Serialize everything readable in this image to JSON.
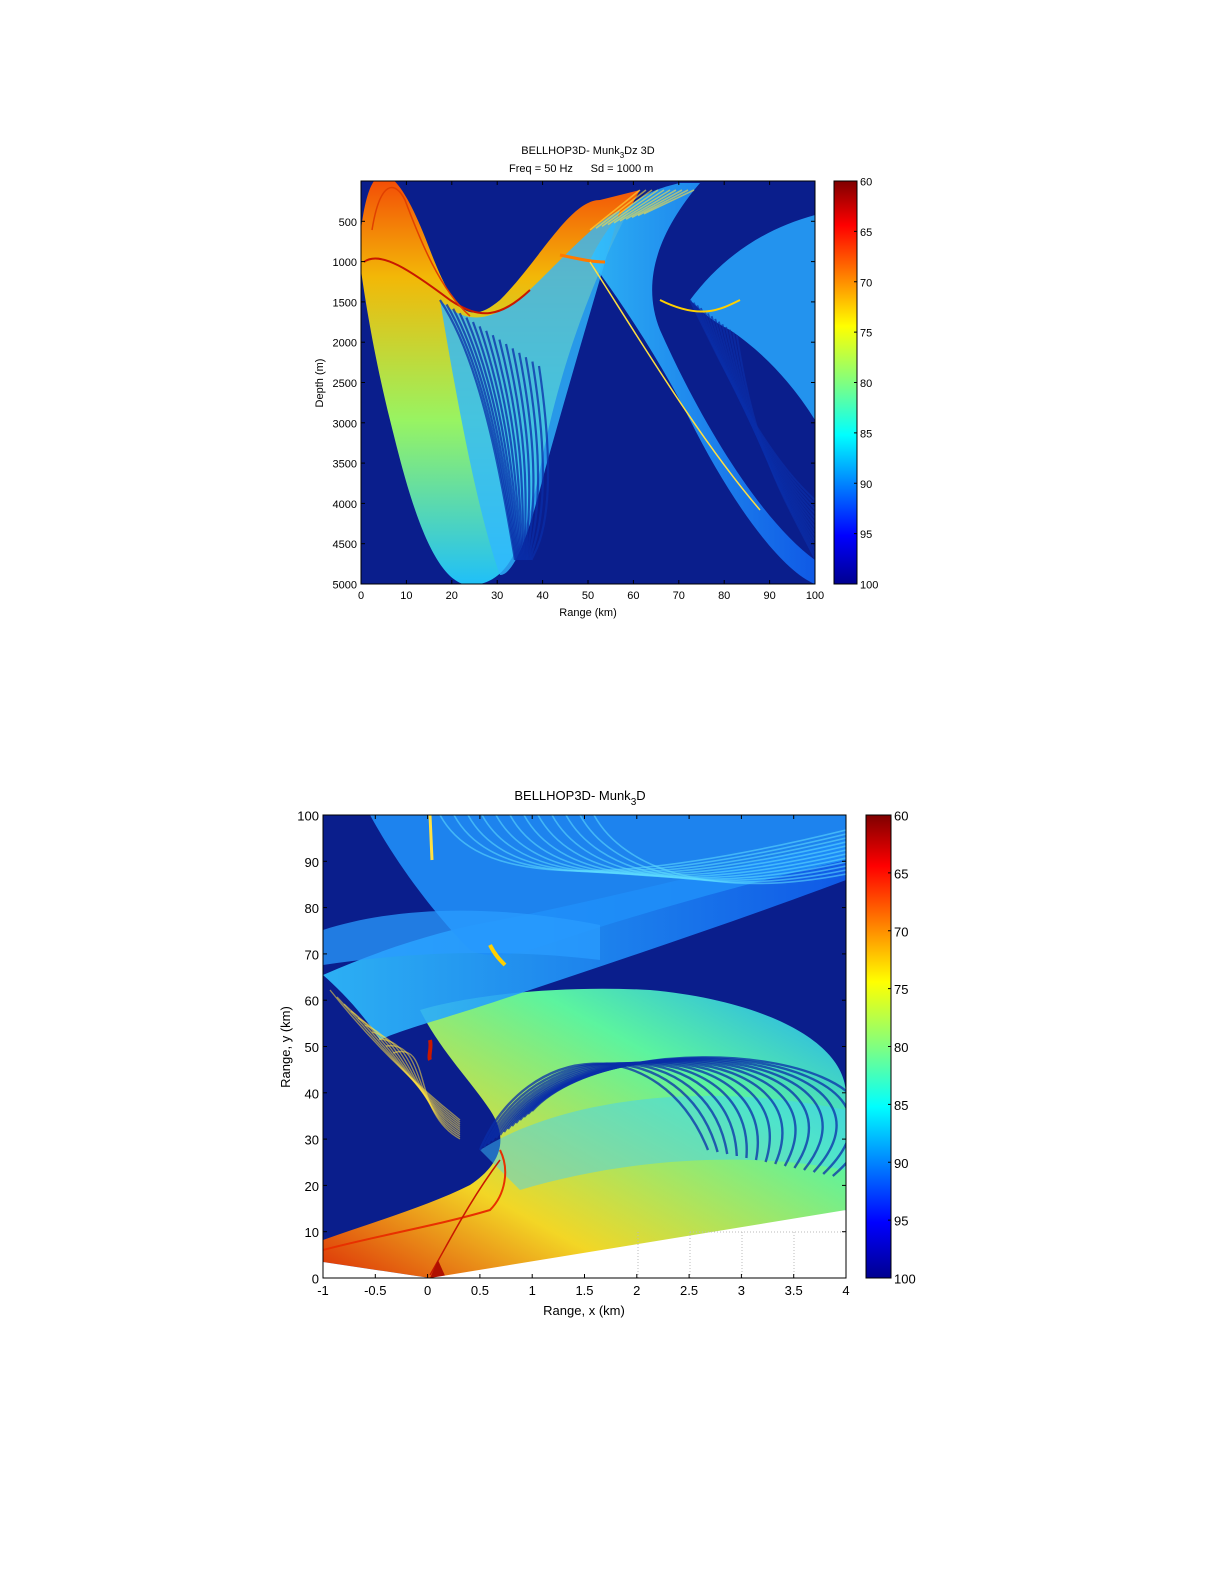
{
  "chart_data": [
    {
      "type": "heatmap",
      "title": "BELLHOP3D- Munk",
      "title_sub": "3",
      "title_rest": "Dz 3D",
      "subtitle_freq": "Freq = 50 Hz",
      "subtitle_sd": "Sd = 1000 m",
      "xlabel": "Range (km)",
      "ylabel": "Depth (m)",
      "xlim": [
        0,
        100
      ],
      "ylim": [
        0,
        5000
      ],
      "y_reversed": true,
      "xticks": [
        "0",
        "10",
        "20",
        "30",
        "40",
        "50",
        "60",
        "70",
        "80",
        "90",
        "100"
      ],
      "yticks": [
        "500",
        "1000",
        "1500",
        "2000",
        "2500",
        "3000",
        "3500",
        "4000",
        "4500",
        "5000"
      ],
      "colorbar": {
        "ticks": [
          "60",
          "65",
          "70",
          "75",
          "80",
          "85",
          "90",
          "95",
          "100"
        ],
        "range": [
          60,
          100
        ],
        "colormap": "jet",
        "reversed": true
      },
      "source_depth_m": 1000,
      "background_level": 100,
      "colors": {
        "background": "#0a1e8c",
        "hot": "#b01000"
      }
    },
    {
      "type": "heatmap",
      "title": "BELLHOP3D- Munk",
      "title_sub": "3",
      "title_rest": "D",
      "xlabel": "Range, x (km)",
      "ylabel": "Range, y (km)",
      "xlim": [
        -1,
        4
      ],
      "ylim": [
        0,
        100
      ],
      "xticks": [
        "-1",
        "-0.5",
        "0",
        "0.5",
        "1",
        "1.5",
        "2",
        "2.5",
        "3",
        "3.5",
        "4"
      ],
      "yticks": [
        "0",
        "10",
        "20",
        "30",
        "40",
        "50",
        "60",
        "70",
        "80",
        "90",
        "100"
      ],
      "colorbar": {
        "ticks": [
          "60",
          "65",
          "70",
          "75",
          "80",
          "85",
          "90",
          "95",
          "100"
        ],
        "range": [
          60,
          100
        ],
        "colormap": "jet",
        "reversed": true
      },
      "background_level": 100,
      "colors": {
        "background": "#0a1e8c",
        "hot": "#b01000"
      }
    }
  ]
}
